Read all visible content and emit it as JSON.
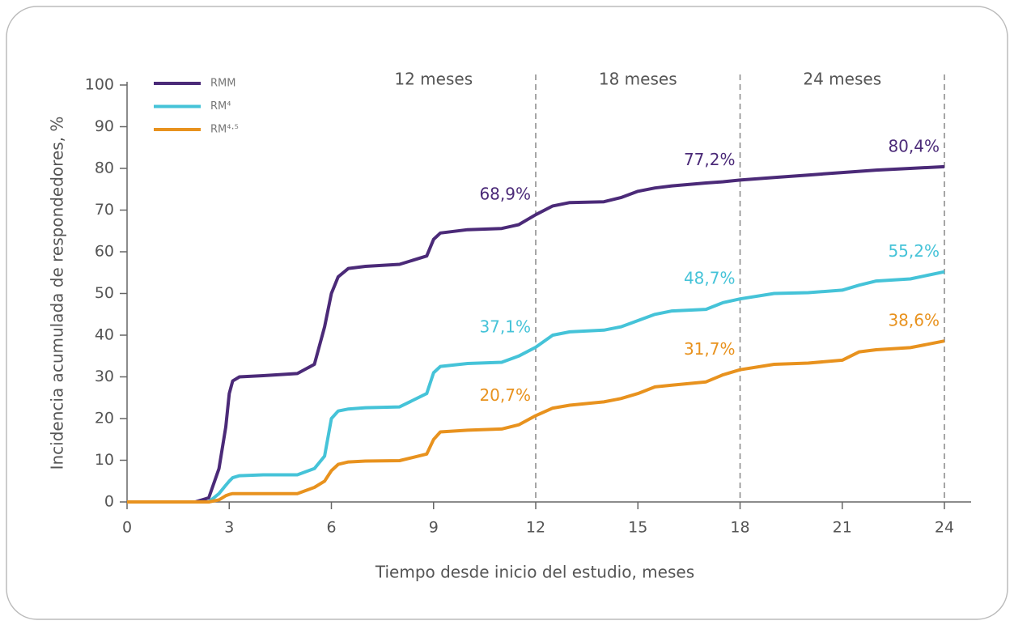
{
  "chart_data": {
    "type": "line",
    "x": [
      0,
      2,
      2.4,
      2.7,
      2.9,
      3.0,
      3.1,
      3.3,
      4,
      5,
      5.5,
      5.8,
      6,
      6.2,
      6.5,
      7,
      8,
      8.8,
      9,
      9.2,
      10,
      11,
      11.5,
      12,
      12.5,
      13,
      14,
      14.5,
      15,
      15.5,
      16,
      17,
      17.5,
      18,
      19,
      20,
      21,
      21.5,
      22,
      23,
      24
    ],
    "series": [
      {
        "name": "RMM",
        "color": "#4b2a78",
        "values": [
          0,
          0,
          1,
          8,
          18,
          26,
          29,
          30,
          30.3,
          30.8,
          33,
          42,
          50,
          54,
          56,
          56.5,
          57,
          59,
          63,
          64.5,
          65.3,
          65.6,
          66.5,
          68.9,
          71,
          71.8,
          72,
          73,
          74.5,
          75.3,
          75.8,
          76.5,
          76.8,
          77.2,
          77.8,
          78.4,
          79,
          79.3,
          79.6,
          80,
          80.4
        ],
        "value_labels": [
          null,
          null,
          null,
          null,
          null,
          null,
          null,
          null,
          null,
          null,
          null,
          null,
          null,
          null,
          null,
          null,
          null,
          null,
          null,
          null,
          null,
          null,
          null,
          "68,9%",
          null,
          null,
          null,
          null,
          null,
          null,
          null,
          null,
          null,
          "77,2%",
          null,
          null,
          null,
          null,
          null,
          null,
          "80,4%"
        ]
      },
      {
        "name": "RM⁴",
        "color": "#45c3d8",
        "values": [
          0,
          0,
          0,
          2,
          4,
          5,
          5.8,
          6.3,
          6.5,
          6.5,
          8,
          11,
          20,
          21.8,
          22.3,
          22.6,
          22.8,
          26,
          31,
          32.5,
          33.2,
          33.5,
          35,
          37.1,
          40,
          40.8,
          41.2,
          42,
          43.5,
          45,
          45.8,
          46.2,
          47.8,
          48.7,
          50,
          50.2,
          50.8,
          52,
          53,
          53.5,
          55.2
        ],
        "value_labels": [
          null,
          null,
          null,
          null,
          null,
          null,
          null,
          null,
          null,
          null,
          null,
          null,
          null,
          null,
          null,
          null,
          null,
          null,
          null,
          null,
          null,
          null,
          null,
          "37,1%",
          null,
          null,
          null,
          null,
          null,
          null,
          null,
          null,
          null,
          "48,7%",
          null,
          null,
          null,
          null,
          null,
          null,
          "55,2%"
        ]
      },
      {
        "name": "RM⁴·⁵",
        "color": "#e8921e",
        "values": [
          0,
          0,
          0,
          0.5,
          1.5,
          1.8,
          2,
          2,
          2,
          2,
          3.5,
          5,
          7.5,
          9,
          9.6,
          9.8,
          9.9,
          11.5,
          15,
          16.8,
          17.2,
          17.5,
          18.5,
          20.7,
          22.5,
          23.2,
          24,
          24.8,
          26,
          27.6,
          28,
          28.8,
          30.5,
          31.7,
          33,
          33.3,
          34,
          36,
          36.5,
          37,
          38.6
        ],
        "value_labels": [
          null,
          null,
          null,
          null,
          null,
          null,
          null,
          null,
          null,
          null,
          null,
          null,
          null,
          null,
          null,
          null,
          null,
          null,
          null,
          null,
          null,
          null,
          null,
          "20,7%",
          null,
          null,
          null,
          null,
          null,
          null,
          null,
          null,
          null,
          "31,7%",
          null,
          null,
          null,
          null,
          null,
          null,
          "38,6%"
        ]
      }
    ],
    "xlim": [
      0,
      24
    ],
    "xticks": [
      0,
      3,
      6,
      9,
      12,
      15,
      18,
      21,
      24
    ],
    "ylim": [
      0,
      100
    ],
    "yticks": [
      0,
      10,
      20,
      30,
      40,
      50,
      60,
      70,
      80,
      90,
      100
    ],
    "xlabel": "Tiempo desde inicio del estudio, meses",
    "ylabel": "Incidencia acumulada de respondedores, %",
    "vlines": [
      12,
      18,
      24
    ],
    "period_labels": [
      "12 meses",
      "18 meses",
      "24 meses"
    ],
    "legend": "top-left"
  }
}
